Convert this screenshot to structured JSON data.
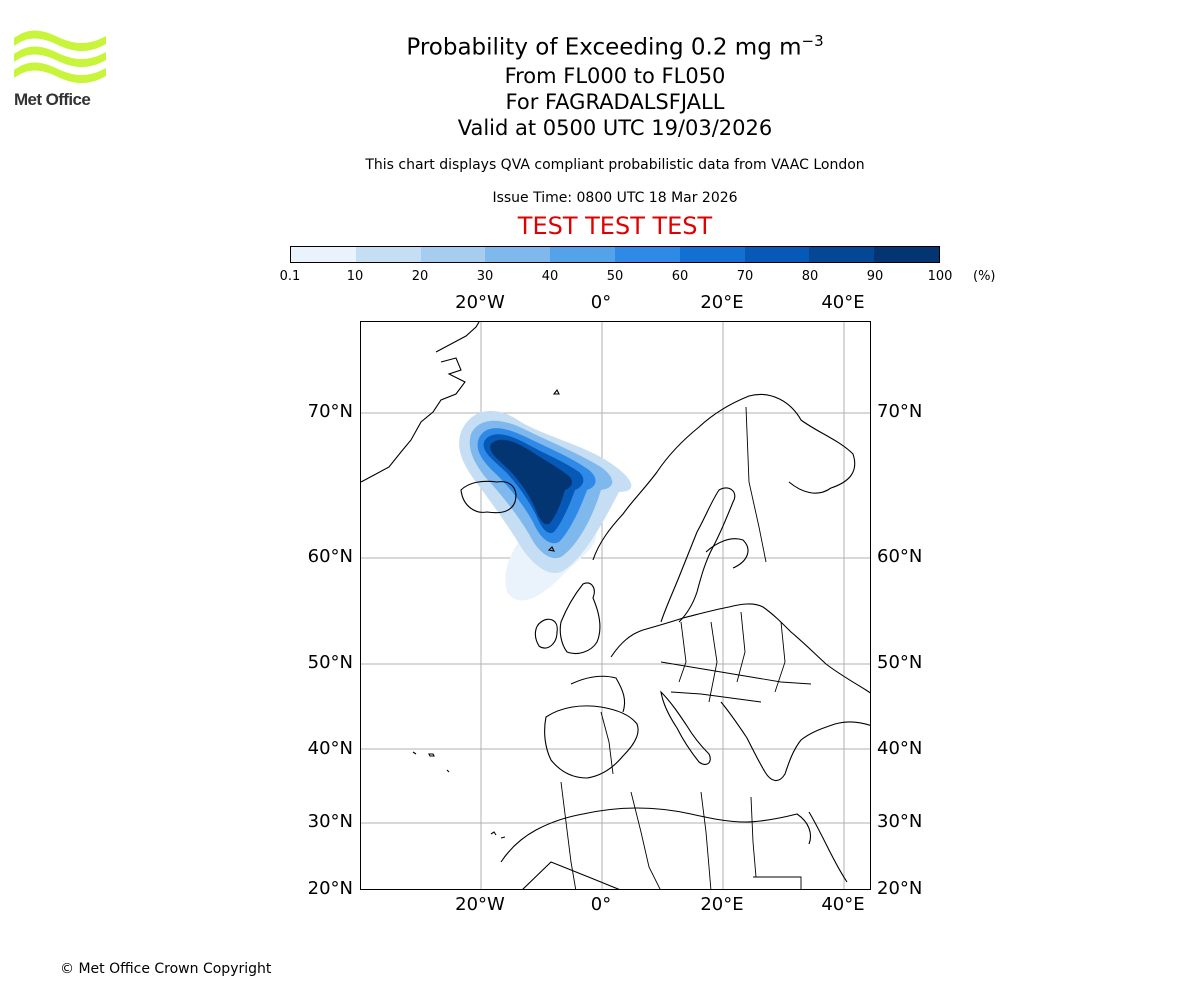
{
  "logo": {
    "name": "Met Office",
    "accent_color": "#c8f53a"
  },
  "title": {
    "line1_main": "Probability of Exceeding 0.2 mg m",
    "line1_sup": "−3",
    "line2": "From FL000 to FL050",
    "line3": "For FAGRADALSFJALL",
    "line4": "Valid at 0500 UTC 19/03/2026"
  },
  "subtitle": "This chart displays QVA compliant probabilistic data from VAAC London",
  "issue_time": "Issue Time: 0800 UTC 18 Mar 2026",
  "test_banner": "TEST TEST TEST",
  "colorbar": {
    "ticks": [
      "0.1",
      "10",
      "20",
      "30",
      "40",
      "50",
      "60",
      "70",
      "80",
      "90",
      "100"
    ],
    "unit": "(%)",
    "colors": [
      "#eaf3fc",
      "#c6def3",
      "#a6cdef",
      "#7fb8ec",
      "#54a2ea",
      "#2f8ae7",
      "#1270d3",
      "#0659b6",
      "#044795",
      "#033573"
    ]
  },
  "map": {
    "lon_labels": [
      "20°W",
      "0°",
      "20°E",
      "40°E"
    ],
    "lat_labels": [
      "70°N",
      "60°N",
      "50°N",
      "40°N",
      "30°N",
      "20°N"
    ]
  },
  "copyright": "© Met Office Crown Copyright"
}
